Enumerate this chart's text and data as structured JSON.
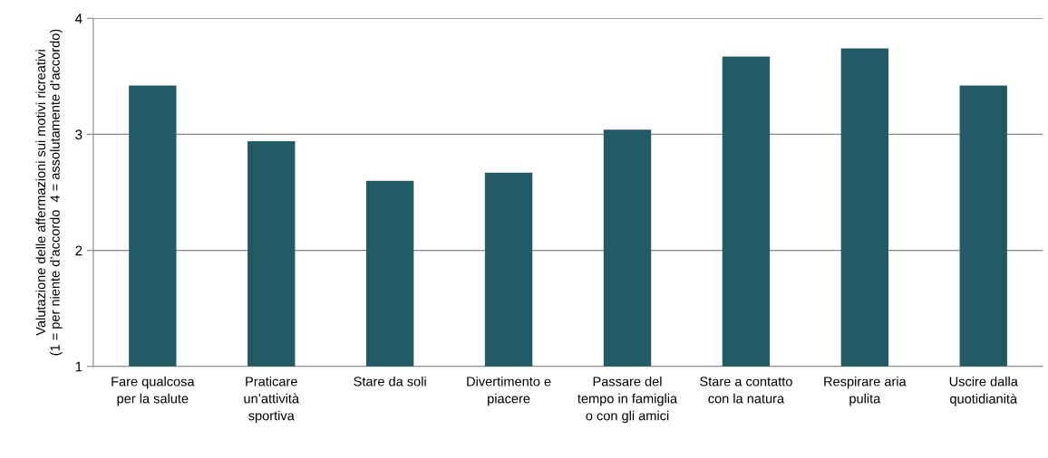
{
  "chart_data": {
    "type": "bar",
    "ylabel": "Valutazione delle affermazioni sui motivi ricreativi\n(1 = per niente d’accordo  4 = assolutamente d’accordo)",
    "categories": [
      "Fare qualcosa\nper la salute",
      "Praticare\nun’attività\nsportiva",
      "Stare da soli",
      "Divertimento e\npiacere",
      "Passare del\ntempo in famiglia\no con gli amici",
      "Stare a contatto\ncon la natura",
      "Respirare aria\npulita",
      "Uscire dalla\nquotidianità"
    ],
    "values": [
      3.42,
      2.94,
      2.6,
      2.67,
      3.04,
      3.67,
      3.74,
      3.42
    ],
    "color": "#225b66",
    "ylim": [
      1,
      4
    ],
    "yticks": [
      1,
      2,
      3,
      4
    ],
    "grid": "y"
  }
}
